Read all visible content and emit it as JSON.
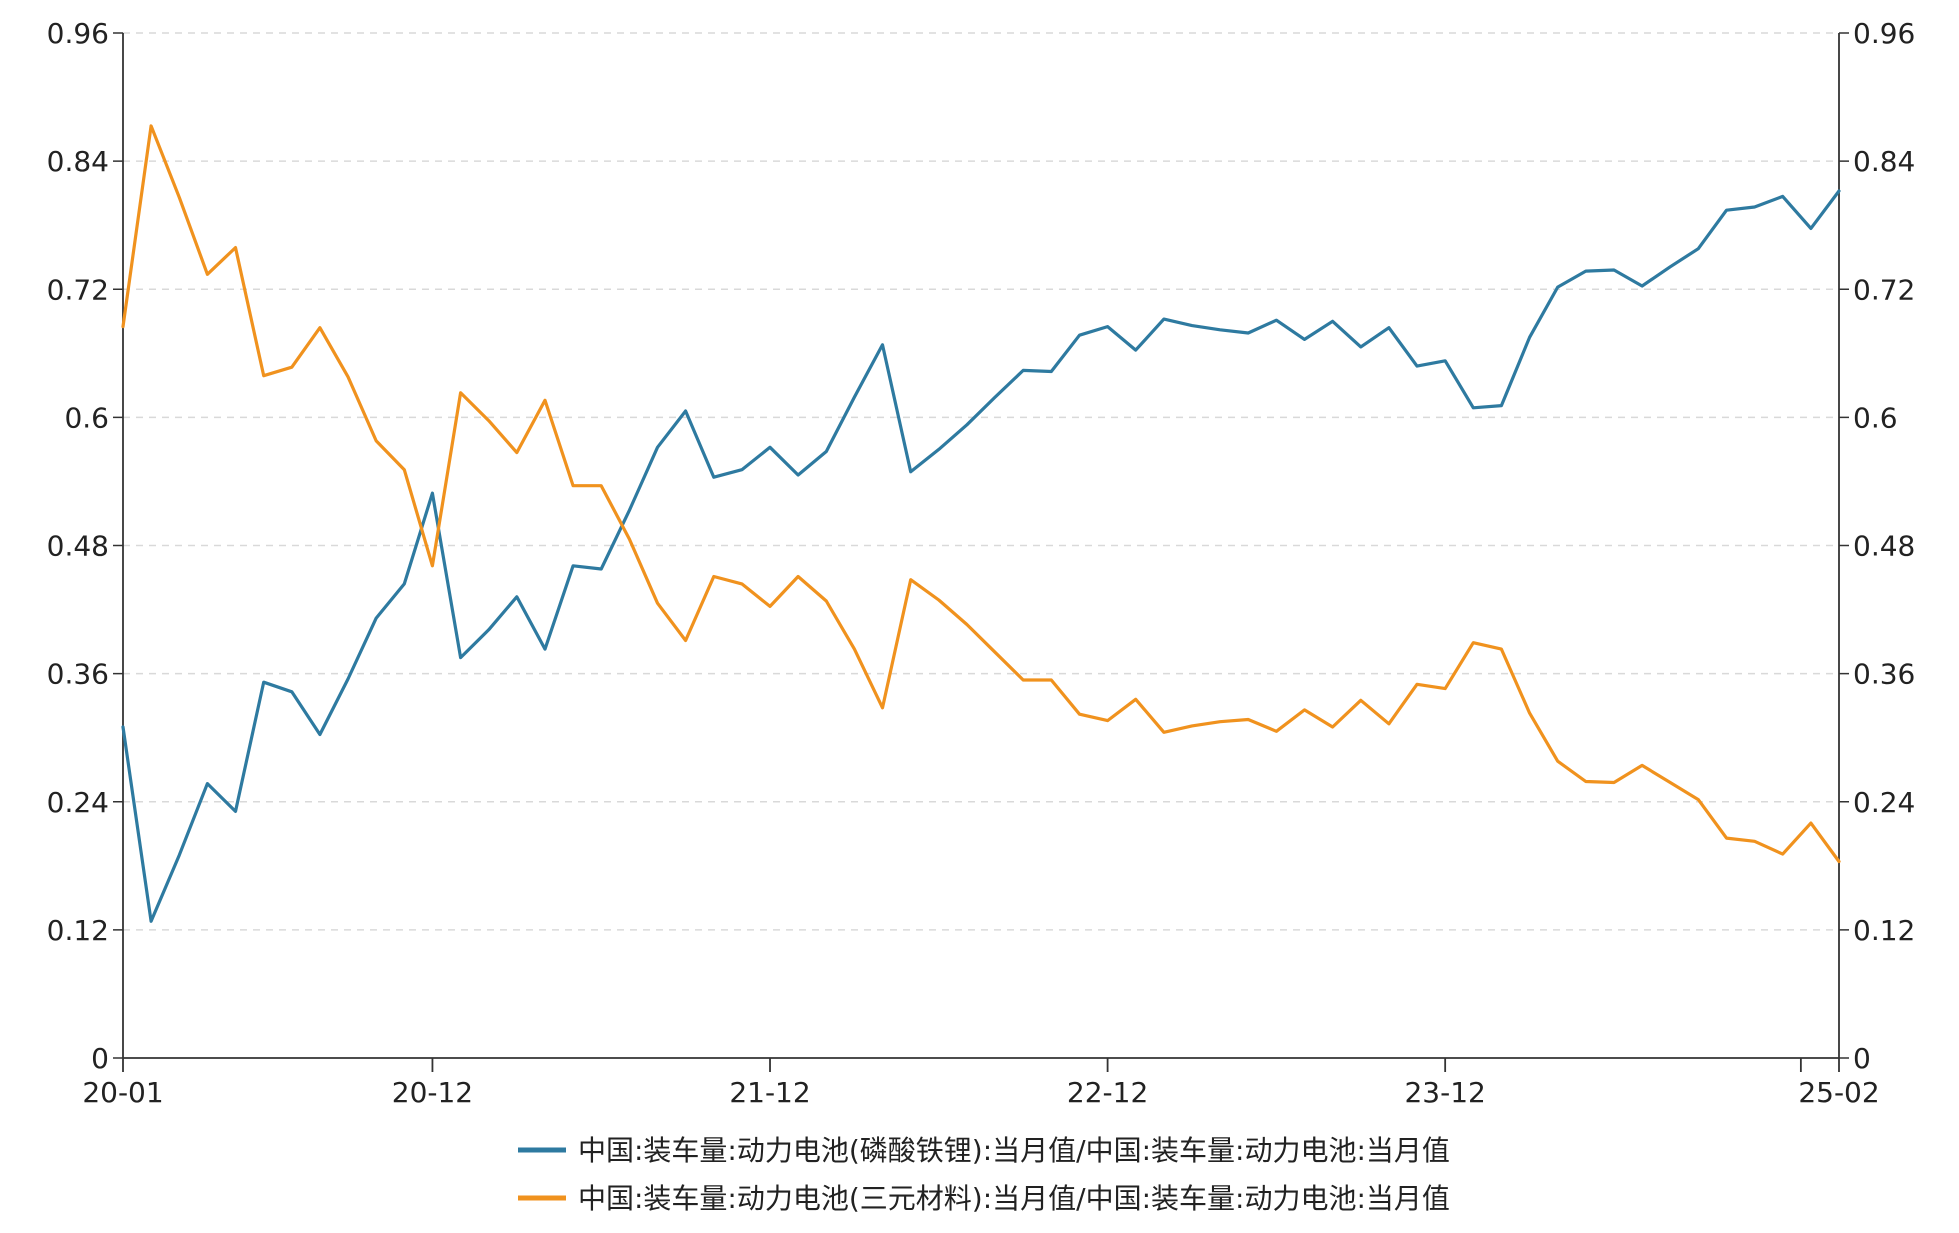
{
  "chart_data": {
    "type": "line",
    "title": "",
    "xlabel": "",
    "ylabel": "",
    "ylim": [
      0,
      0.96
    ],
    "y_right_ylim": [
      0,
      0.96
    ],
    "y_ticks": [
      "0",
      "0.12",
      "0.24",
      "0.36",
      "0.48",
      "0.6",
      "0.72",
      "0.84",
      "0.96"
    ],
    "x_ticks": [
      "20-01",
      "20-12",
      "21-12",
      "22-12",
      "23-12",
      "25-02"
    ],
    "grid": "horizontal dashed",
    "legend_position": "bottom-center",
    "x": [
      "20-01",
      "20-02",
      "20-03",
      "20-04",
      "20-05",
      "20-06",
      "20-07",
      "20-08",
      "20-09",
      "20-10",
      "20-11",
      "20-12",
      "21-01",
      "21-02",
      "21-03",
      "21-04",
      "21-05",
      "21-06",
      "21-07",
      "21-08",
      "21-09",
      "21-10",
      "21-11",
      "21-12",
      "22-01",
      "22-02",
      "22-03",
      "22-04",
      "22-05",
      "22-06",
      "22-07",
      "22-08",
      "22-09",
      "22-10",
      "22-11",
      "22-12",
      "23-01",
      "23-02",
      "23-03",
      "23-04",
      "23-05",
      "23-06",
      "23-07",
      "23-08",
      "23-09",
      "23-10",
      "23-11",
      "23-12",
      "24-01",
      "24-02",
      "24-03",
      "24-04",
      "24-05",
      "24-06",
      "24-07",
      "24-08",
      "24-09",
      "24-10",
      "24-11",
      "24-12",
      "25-01",
      "25-02"
    ],
    "series": [
      {
        "name": "中国:装车量:动力电池(磷酸铁锂):当月值/中国:装车量:动力电池:当月值",
        "color": "#2e7aa0",
        "values": [
          0.31,
          0.128,
          0.19,
          0.257,
          0.231,
          0.352,
          0.343,
          0.303,
          0.355,
          0.412,
          0.444,
          0.529,
          0.375,
          0.401,
          0.432,
          0.383,
          0.461,
          0.458,
          0.513,
          0.572,
          0.606,
          0.544,
          0.551,
          0.572,
          0.546,
          0.568,
          0.619,
          0.668,
          0.549,
          0.57,
          0.593,
          0.619,
          0.644,
          0.643,
          0.677,
          0.685,
          0.663,
          0.692,
          0.686,
          0.682,
          0.679,
          0.691,
          0.673,
          0.69,
          0.666,
          0.684,
          0.648,
          0.653,
          0.609,
          0.611,
          0.675,
          0.722,
          0.737,
          0.738,
          0.723,
          0.741,
          0.758,
          0.794,
          0.797,
          0.807,
          0.777,
          0.812
        ]
      },
      {
        "name": "中国:装车量:动力电池(三元材料):当月值/中国:装车量:动力电池:当月值",
        "color": "#f0921e",
        "values": [
          0.685,
          0.873,
          0.806,
          0.734,
          0.759,
          0.639,
          0.647,
          0.684,
          0.638,
          0.578,
          0.551,
          0.461,
          0.623,
          0.597,
          0.567,
          0.616,
          0.536,
          0.536,
          0.486,
          0.426,
          0.391,
          0.451,
          0.444,
          0.423,
          0.451,
          0.428,
          0.383,
          0.328,
          0.448,
          0.429,
          0.406,
          0.38,
          0.354,
          0.354,
          0.322,
          0.316,
          0.336,
          0.305,
          0.311,
          0.315,
          0.317,
          0.306,
          0.326,
          0.31,
          0.335,
          0.313,
          0.35,
          0.346,
          0.389,
          0.383,
          0.323,
          0.278,
          0.259,
          0.258,
          0.274,
          0.258,
          0.242,
          0.206,
          0.203,
          0.191,
          0.22,
          0.184
        ]
      }
    ]
  }
}
